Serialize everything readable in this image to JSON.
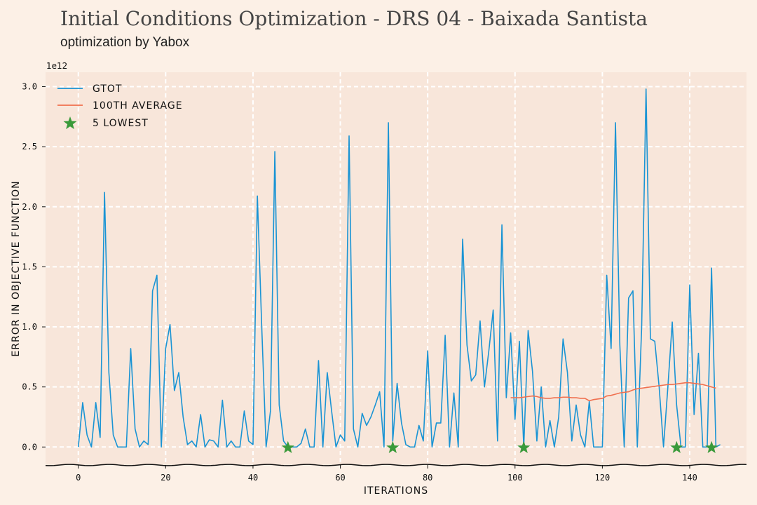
{
  "header": {
    "title": "Initial Conditions Optimization - DRS 04 - Baixada Santista",
    "subtitle": "optimization by Yabox"
  },
  "chart_data": {
    "type": "line",
    "xlabel": "ITERATIONS",
    "ylabel": "ERROR IN OBJECTIVE FUNCTION",
    "y_offset_label": "1e12",
    "xlim": [
      -7.5,
      153
    ],
    "ylim": [
      -0.15,
      3.12
    ],
    "x_ticks": [
      0,
      20,
      40,
      60,
      80,
      100,
      120,
      140
    ],
    "y_ticks": [
      0.0,
      0.5,
      1.0,
      1.5,
      2.0,
      2.5,
      3.0
    ],
    "x_tick_labels": [
      "0",
      "20",
      "40",
      "60",
      "80",
      "100",
      "120",
      "140"
    ],
    "y_tick_labels": [
      "0.0",
      "0.5",
      "1.0",
      "1.5",
      "2.0",
      "2.5",
      "3.0"
    ],
    "grid": true,
    "legend_position": "top-left",
    "colors": {
      "gtot": "#1a94d4",
      "average": "#f0704f",
      "lowest": "#3a9a3a",
      "plot_bg": "#f8e6da",
      "grid": "#ffffff"
    },
    "series": [
      {
        "name": "GTOT",
        "x_start": 0,
        "values": [
          0.0,
          0.37,
          0.1,
          0.0,
          0.37,
          0.08,
          2.12,
          0.62,
          0.1,
          0.0,
          0.0,
          0.0,
          0.82,
          0.15,
          0.0,
          0.05,
          0.02,
          1.3,
          1.43,
          0.0,
          0.82,
          1.02,
          0.47,
          0.62,
          0.25,
          0.02,
          0.05,
          0.0,
          0.27,
          0.0,
          0.06,
          0.05,
          0.0,
          0.39,
          0.0,
          0.05,
          0.0,
          0.0,
          0.3,
          0.05,
          0.02,
          2.09,
          1.0,
          0.0,
          0.3,
          2.46,
          0.35,
          0.05,
          0.0,
          0.0,
          0.0,
          0.03,
          0.15,
          0.0,
          0.0,
          0.72,
          0.0,
          0.62,
          0.3,
          0.0,
          0.1,
          0.05,
          2.59,
          0.15,
          0.0,
          0.28,
          0.18,
          0.25,
          0.35,
          0.46,
          0.0,
          2.7,
          0.05,
          0.53,
          0.2,
          0.02,
          0.0,
          0.0,
          0.18,
          0.05,
          0.8,
          0.0,
          0.2,
          0.2,
          0.93,
          0.0,
          0.45,
          0.0,
          1.73,
          0.85,
          0.55,
          0.6,
          1.05,
          0.5,
          0.8,
          1.14,
          0.05,
          1.85,
          0.41,
          0.95,
          0.23,
          0.88,
          0.0,
          0.97,
          0.63,
          0.05,
          0.5,
          0.0,
          0.22,
          0.0,
          0.25,
          0.9,
          0.62,
          0.05,
          0.35,
          0.1,
          0.0,
          0.38,
          0.0,
          0.0,
          0.0,
          1.43,
          0.82,
          2.7,
          0.85,
          0.0,
          1.24,
          1.3,
          0.0,
          1.0,
          2.98,
          0.9,
          0.88,
          0.5,
          0.0,
          0.5,
          1.04,
          0.35,
          0.0,
          0.0,
          1.35,
          0.27,
          0.78,
          0.0,
          0.0,
          1.49,
          0.0,
          0.02
        ]
      },
      {
        "name": "100TH AVERAGE",
        "x_start": 99,
        "values": [
          0.41,
          0.41,
          0.41,
          0.415,
          0.42,
          0.425,
          0.42,
          0.41,
          0.405,
          0.405,
          0.41,
          0.41,
          0.415,
          0.415,
          0.41,
          0.41,
          0.405,
          0.405,
          0.385,
          0.395,
          0.4,
          0.405,
          0.425,
          0.43,
          0.44,
          0.45,
          0.455,
          0.46,
          0.475,
          0.485,
          0.49,
          0.495,
          0.5,
          0.505,
          0.51,
          0.515,
          0.52,
          0.52,
          0.525,
          0.53,
          0.535,
          0.535,
          0.53,
          0.525,
          0.52,
          0.51,
          0.5,
          0.49
        ]
      },
      {
        "name": "5 LOWEST",
        "x": [
          48,
          72,
          102,
          137,
          145
        ],
        "values": [
          0.0,
          0.0,
          0.0,
          0.0,
          0.0
        ]
      }
    ]
  }
}
